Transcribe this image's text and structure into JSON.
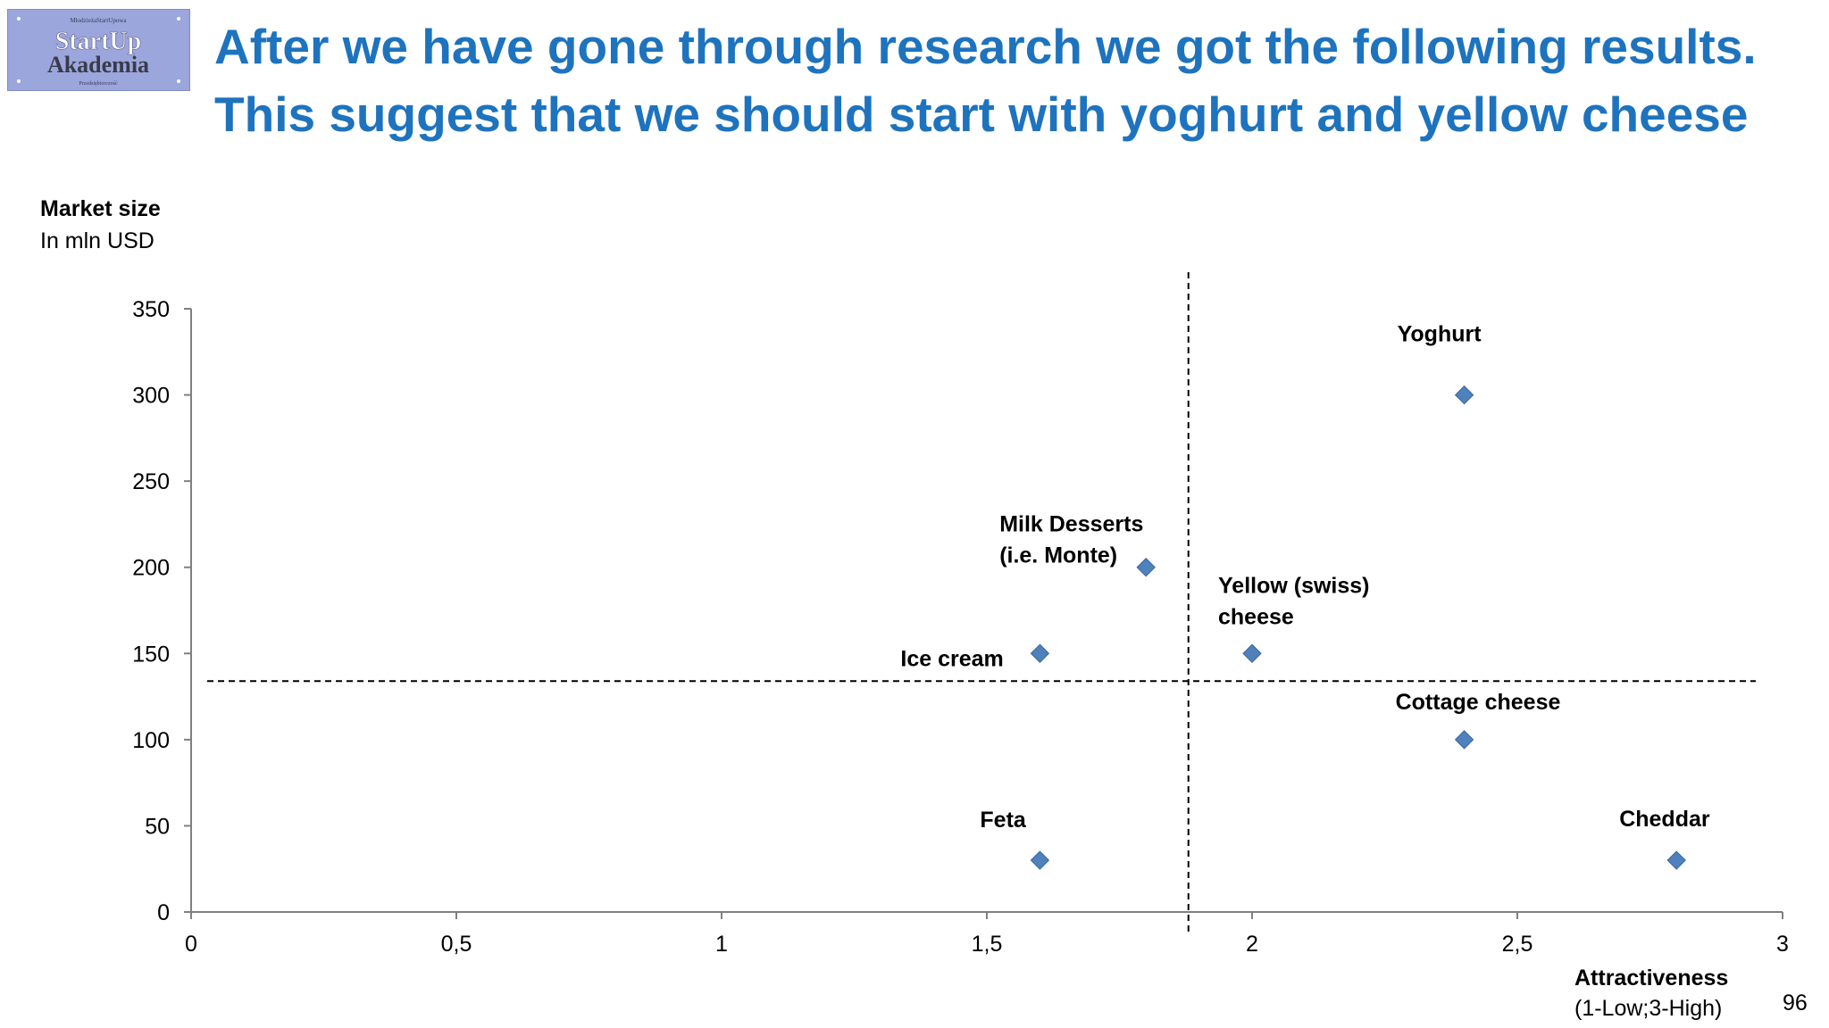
{
  "slide": {
    "title_lines": [
      "After we have gone through research we got the following results.",
      "This suggest that we should start with yoghurt and yellow cheese"
    ],
    "page_number": "96"
  },
  "logo": {
    "top_text": "MłodzieżaStartUpowa",
    "line1": "StartUp",
    "line2": "Akademia",
    "bottom_text": "Przedsiębiorczość"
  },
  "colors": {
    "title": "#1e73be",
    "marker": "#4f81bd",
    "marker_stroke": "#3a64a0",
    "axis": "#808080"
  },
  "chart_data": {
    "type": "scatter",
    "ylabel": "Market size",
    "ylabel_sub": "In mln USD",
    "xlabel": "Attractiveness",
    "xlabel_sub": "(1-Low;3-High)",
    "xlim": [
      0,
      3
    ],
    "ylim": [
      0,
      350
    ],
    "x_ticks": [
      "0",
      "0,5",
      "1",
      "1,5",
      "2",
      "2,5",
      "3"
    ],
    "y_ticks": [
      "0",
      "50",
      "100",
      "150",
      "200",
      "250",
      "300",
      "350"
    ],
    "grid": false,
    "divider_x": 1.88,
    "divider_y": 134,
    "points": [
      {
        "label": "Yoghurt",
        "x": 2.4,
        "y": 300
      },
      {
        "label": "Milk Desserts\n(i.e. Monte)",
        "x": 1.8,
        "y": 200
      },
      {
        "label": "Yellow (swiss)\ncheese",
        "x": 2.0,
        "y": 150
      },
      {
        "label": "Ice cream",
        "x": 1.6,
        "y": 150
      },
      {
        "label": "Cottage cheese",
        "x": 2.4,
        "y": 100
      },
      {
        "label": "Feta",
        "x": 1.6,
        "y": 30
      },
      {
        "label": "Cheddar",
        "x": 2.8,
        "y": 30
      }
    ]
  }
}
